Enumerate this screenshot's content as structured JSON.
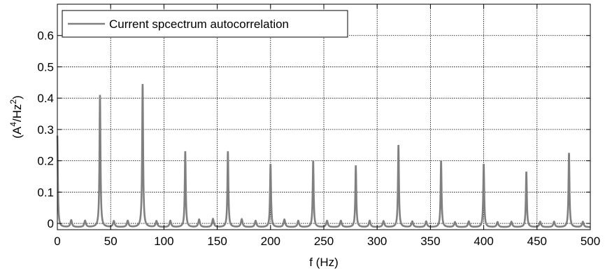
{
  "chart_data": {
    "type": "line",
    "title": "",
    "xlabel": "f (Hz)",
    "ylabel": {
      "base": "(A",
      "sup1": "4",
      "mid": "/Hz",
      "sup2": "2",
      "end": ")"
    },
    "xlim": [
      0,
      500
    ],
    "ylim": [
      -0.02,
      0.7
    ],
    "xticks": [
      0,
      50,
      100,
      150,
      200,
      250,
      300,
      350,
      400,
      450,
      500
    ],
    "yticks": [
      0,
      0.1,
      0.2,
      0.3,
      0.4,
      0.5,
      0.6
    ],
    "ytick_labels": [
      "0",
      "0.1",
      "0.2",
      "0.3",
      "0.4",
      "0.5",
      "0.6"
    ],
    "grid": true,
    "legend_position": "top-left",
    "series": [
      {
        "name": "Current spcectrum autocorrelation",
        "color": "#808080",
        "peaks": [
          {
            "x": 0,
            "y": 0.28
          },
          {
            "x": 40,
            "y": 0.41
          },
          {
            "x": 80,
            "y": 0.445
          },
          {
            "x": 120,
            "y": 0.23
          },
          {
            "x": 160,
            "y": 0.23
          },
          {
            "x": 200,
            "y": 0.19
          },
          {
            "x": 240,
            "y": 0.2
          },
          {
            "x": 280,
            "y": 0.185
          },
          {
            "x": 320,
            "y": 0.25
          },
          {
            "x": 360,
            "y": 0.2
          },
          {
            "x": 400,
            "y": 0.19
          },
          {
            "x": 440,
            "y": 0.165
          },
          {
            "x": 480,
            "y": 0.225
          }
        ],
        "minor_peaks": [
          {
            "x": 13,
            "y": 0.01
          },
          {
            "x": 26,
            "y": 0.008
          },
          {
            "x": 53,
            "y": 0.007
          },
          {
            "x": 66,
            "y": 0.008
          },
          {
            "x": 93,
            "y": 0.007
          },
          {
            "x": 106,
            "y": 0.008
          },
          {
            "x": 133,
            "y": 0.012
          },
          {
            "x": 146,
            "y": 0.014
          },
          {
            "x": 173,
            "y": 0.013
          },
          {
            "x": 186,
            "y": 0.008
          },
          {
            "x": 213,
            "y": 0.012
          },
          {
            "x": 226,
            "y": 0.008
          },
          {
            "x": 253,
            "y": 0.008
          },
          {
            "x": 266,
            "y": 0.008
          },
          {
            "x": 293,
            "y": 0.008
          },
          {
            "x": 306,
            "y": 0.007
          },
          {
            "x": 333,
            "y": 0.006
          },
          {
            "x": 346,
            "y": 0.006
          },
          {
            "x": 373,
            "y": 0.004
          },
          {
            "x": 386,
            "y": 0.006
          },
          {
            "x": 413,
            "y": 0.004
          },
          {
            "x": 426,
            "y": 0.005
          },
          {
            "x": 453,
            "y": 0.005
          },
          {
            "x": 466,
            "y": 0.005
          },
          {
            "x": 493,
            "y": 0.005
          }
        ],
        "baseline": -0.012
      }
    ]
  }
}
